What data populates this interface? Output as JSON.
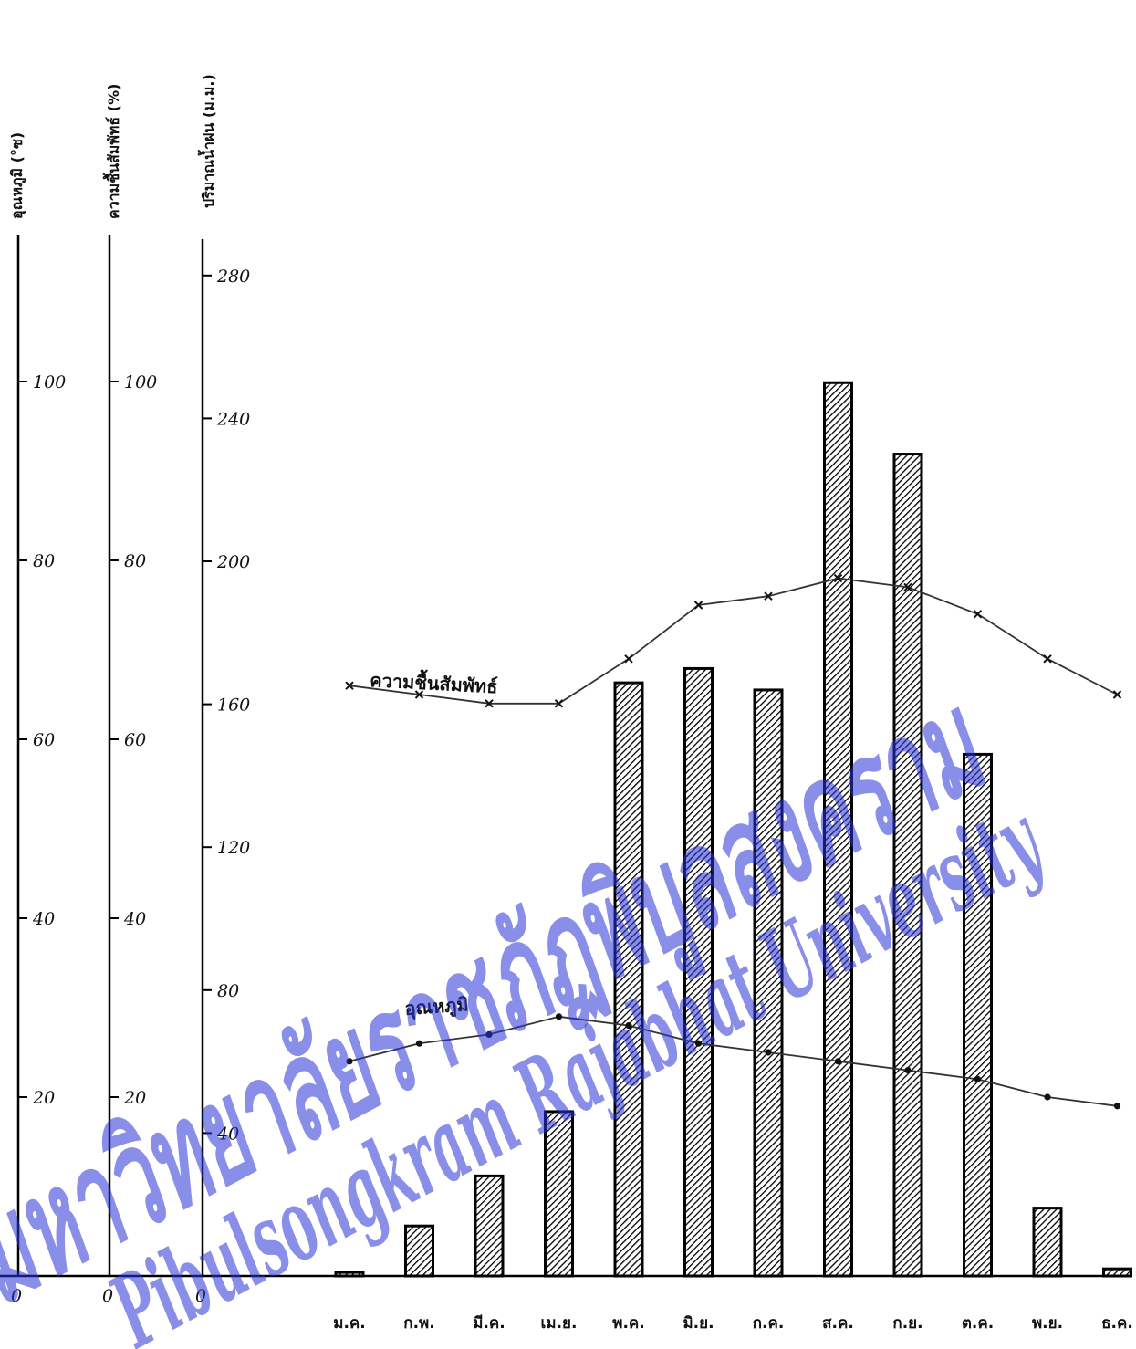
{
  "chart_data": {
    "type": "bar",
    "categories": [
      "ม.ค.",
      "ก.พ.",
      "มี.ค.",
      "เม.ย.",
      "พ.ค.",
      "มิ.ย.",
      "ก.ค.",
      "ส.ค.",
      "ก.ย.",
      "ต.ค.",
      "พ.ย.",
      "ธ.ค."
    ],
    "axes": {
      "temperature": {
        "title": "อุณหภูมิ (°ซ)",
        "zero": "0",
        "ticks": [
          "20",
          "40",
          "60",
          "80",
          "100"
        ],
        "ylim": [
          0,
          120
        ]
      },
      "humidity": {
        "title": "ความชื้นสัมพัทธ์ (%)",
        "zero": "0",
        "ticks": [
          "20",
          "40",
          "60",
          "80",
          "100"
        ],
        "ylim": [
          0,
          120
        ]
      },
      "rainfall": {
        "title": "ปริมาณน้ำฝน (ม.ม.)",
        "zero": "0",
        "ticks": [
          "40",
          "80",
          "120",
          "160",
          "200",
          "240",
          "280"
        ],
        "ylim": [
          0,
          290
        ]
      }
    },
    "series": [
      {
        "name": "",
        "axis": "rainfall",
        "kind": "bar",
        "values": [
          1,
          14,
          28,
          46,
          166,
          170,
          164,
          250,
          230,
          146,
          19,
          2
        ]
      },
      {
        "name": "ความชื้นสัมพัทธ์",
        "axis": "humidity",
        "kind": "line",
        "marker": "x",
        "values": [
          66,
          65,
          64,
          64,
          69,
          75,
          76,
          78,
          77,
          74,
          69,
          65
        ]
      },
      {
        "name": "อุณหภูมิ",
        "axis": "temperature",
        "kind": "line",
        "marker": "dot",
        "values": [
          24,
          26,
          27,
          29,
          28,
          26,
          25,
          24,
          23,
          22,
          20,
          19
        ]
      }
    ],
    "grid": false,
    "legend": "inline labels"
  },
  "watermark": {
    "thai": "มหาวิทยาลัยราชภัฏพิบูลสงคราม",
    "english": "Pibulsongkram Rajabhat University",
    "color": "#2a33d8"
  }
}
